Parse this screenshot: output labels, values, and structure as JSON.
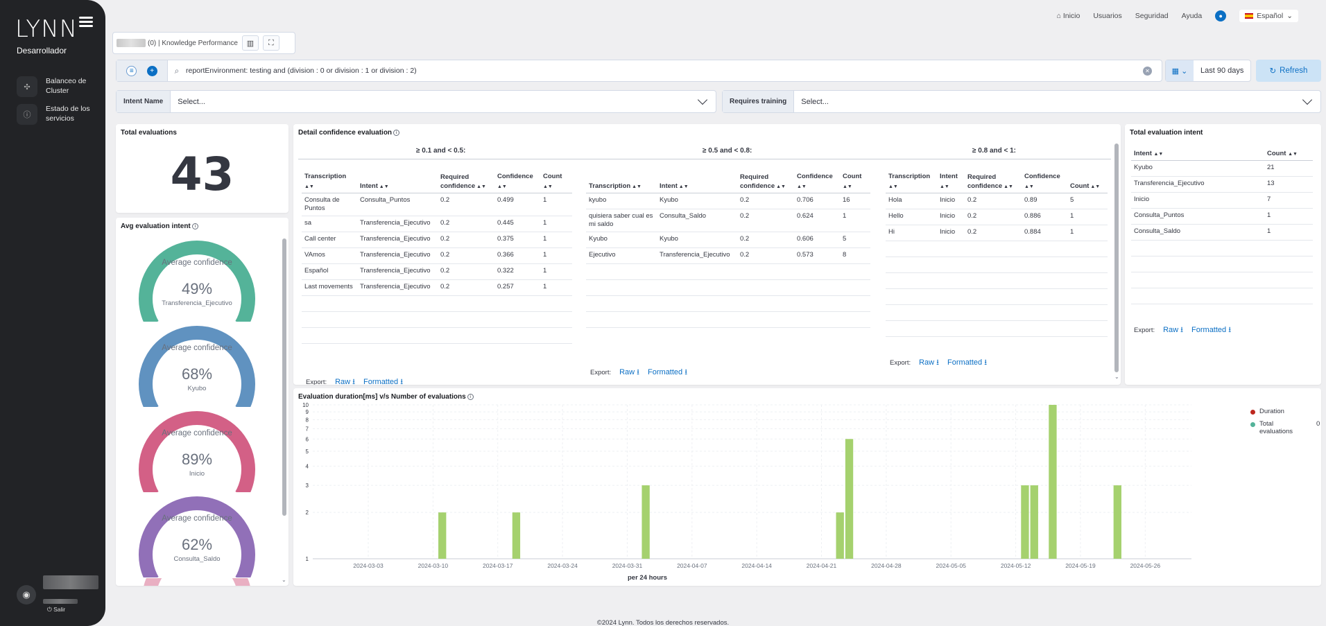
{
  "app": {
    "logo": "LYNN",
    "role": "Desarrollador"
  },
  "sidebar": {
    "items": [
      {
        "label": "Balanceo de Cluster",
        "icon": "cluster-icon"
      },
      {
        "label": "Estado de los servicios",
        "icon": "info-icon"
      }
    ],
    "logout": "Salir"
  },
  "topnav": {
    "items": [
      "Inicio",
      "Usuarios",
      "Seguridad",
      "Ayuda"
    ],
    "language": "Español"
  },
  "dashboard": {
    "title": "(0) | Knowledge Performance"
  },
  "query": {
    "text": "reportEnvironment: testing and (division : 0 or division : 1 or division : 2)"
  },
  "time": {
    "range": "Last 90 days",
    "refresh": "Refresh"
  },
  "controls": [
    {
      "label": "Intent Name",
      "placeholder": "Select..."
    },
    {
      "label": "Requires training",
      "placeholder": "Select..."
    }
  ],
  "total_evaluations": {
    "title": "Total evaluations",
    "value": "43"
  },
  "avg_intent": {
    "title": "Avg evaluation intent",
    "gauges": [
      {
        "label": "Average confidence",
        "value": "49%",
        "name": "Transferencia_Ejecutivo",
        "color": "#54b399",
        "fraction": 0.49
      },
      {
        "label": "Average confidence",
        "value": "68%",
        "name": "Kyubo",
        "color": "#6092c0",
        "fraction": 0.68
      },
      {
        "label": "Average confidence",
        "value": "89%",
        "name": "Inicio",
        "color": "#d36086",
        "fraction": 0.89
      },
      {
        "label": "Average confidence",
        "value": "62%",
        "name": "Consulta_Saldo",
        "color": "#9170b8",
        "fraction": 0.62
      }
    ]
  },
  "detail": {
    "title": "Detail confidence evaluation",
    "columns": [
      "Transcription",
      "Intent",
      "Required confidence",
      "Confidence",
      "Count"
    ],
    "sections": [
      {
        "title": "≥ 0.1 and < 0.5:",
        "rows": [
          [
            "Consulta de Puntos",
            "Consulta_Puntos",
            "0.2",
            "0.499",
            "1"
          ],
          [
            "sa",
            "Transferencia_Ejecutivo",
            "0.2",
            "0.445",
            "1"
          ],
          [
            "Call center",
            "Transferencia_Ejecutivo",
            "0.2",
            "0.375",
            "1"
          ],
          [
            "VAmos",
            "Transferencia_Ejecutivo",
            "0.2",
            "0.366",
            "1"
          ],
          [
            "Español",
            "Transferencia_Ejecutivo",
            "0.2",
            "0.322",
            "1"
          ],
          [
            "Last movements",
            "Transferencia_Ejecutivo",
            "0.2",
            "0.257",
            "1"
          ]
        ]
      },
      {
        "title": "≥ 0.5 and < 0.8:",
        "rows": [
          [
            "kyubo",
            "Kyubo",
            "0.2",
            "0.706",
            "16"
          ],
          [
            "quisiera saber cual es mi saldo",
            "Consulta_Saldo",
            "0.2",
            "0.624",
            "1"
          ],
          [
            "Kyubo",
            "Kyubo",
            "0.2",
            "0.606",
            "5"
          ],
          [
            "Ejecutivo",
            "Transferencia_Ejecutivo",
            "0.2",
            "0.573",
            "8"
          ]
        ]
      },
      {
        "title": "≥ 0.8 and < 1:",
        "rows": [
          [
            "Hola",
            "Inicio",
            "0.2",
            "0.89",
            "5"
          ],
          [
            "Hello",
            "Inicio",
            "0.2",
            "0.886",
            "1"
          ],
          [
            "Hi",
            "Inicio",
            "0.2",
            "0.884",
            "1"
          ]
        ]
      }
    ],
    "export": {
      "label": "Export:",
      "raw": "Raw",
      "formatted": "Formatted"
    }
  },
  "total_intent": {
    "title": "Total evaluation intent",
    "columns": [
      "Intent",
      "Count"
    ],
    "rows": [
      [
        "Kyubo",
        "21"
      ],
      [
        "Transferencia_Ejecutivo",
        "13"
      ],
      [
        "Inicio",
        "7"
      ],
      [
        "Consulta_Puntos",
        "1"
      ],
      [
        "Consulta_Saldo",
        "1"
      ]
    ]
  },
  "chart_data": {
    "type": "bar",
    "title": "Evaluation duration[ms] v/s Number of evaluations",
    "xlabel": "per 24 hours",
    "ylabel": "",
    "yscale": "log",
    "ylim": [
      1,
      10
    ],
    "yticks": [
      "1",
      "2",
      "3",
      "4",
      "5",
      "6",
      "7",
      "8",
      "9",
      "10"
    ],
    "xticks": [
      "2024-03-03",
      "2024-03-10",
      "2024-03-17",
      "2024-03-24",
      "2024-03-31",
      "2024-04-07",
      "2024-04-14",
      "2024-04-21",
      "2024-04-28",
      "2024-05-05",
      "2024-05-12",
      "2024-05-19",
      "2024-05-26"
    ],
    "series": [
      {
        "name": "Duration",
        "color": "#e7664c",
        "points": []
      },
      {
        "name": "Total evaluations",
        "color": "#54b399",
        "bar_color": "#a5d16e",
        "points": [
          {
            "x": "2024-03-11",
            "y": 2
          },
          {
            "x": "2024-03-19",
            "y": 2
          },
          {
            "x": "2024-04-02",
            "y": 3
          },
          {
            "x": "2024-04-23",
            "y": 2
          },
          {
            "x": "2024-04-24",
            "y": 6
          },
          {
            "x": "2024-05-13",
            "y": 3
          },
          {
            "x": "2024-05-14",
            "y": 3
          },
          {
            "x": "2024-05-16",
            "y": 10
          },
          {
            "x": "2024-05-23",
            "y": 3
          }
        ]
      }
    ],
    "legend_value": "0",
    "legend_position": "top-right"
  },
  "footer": "©2024 Lynn. Todos los derechos reservados."
}
